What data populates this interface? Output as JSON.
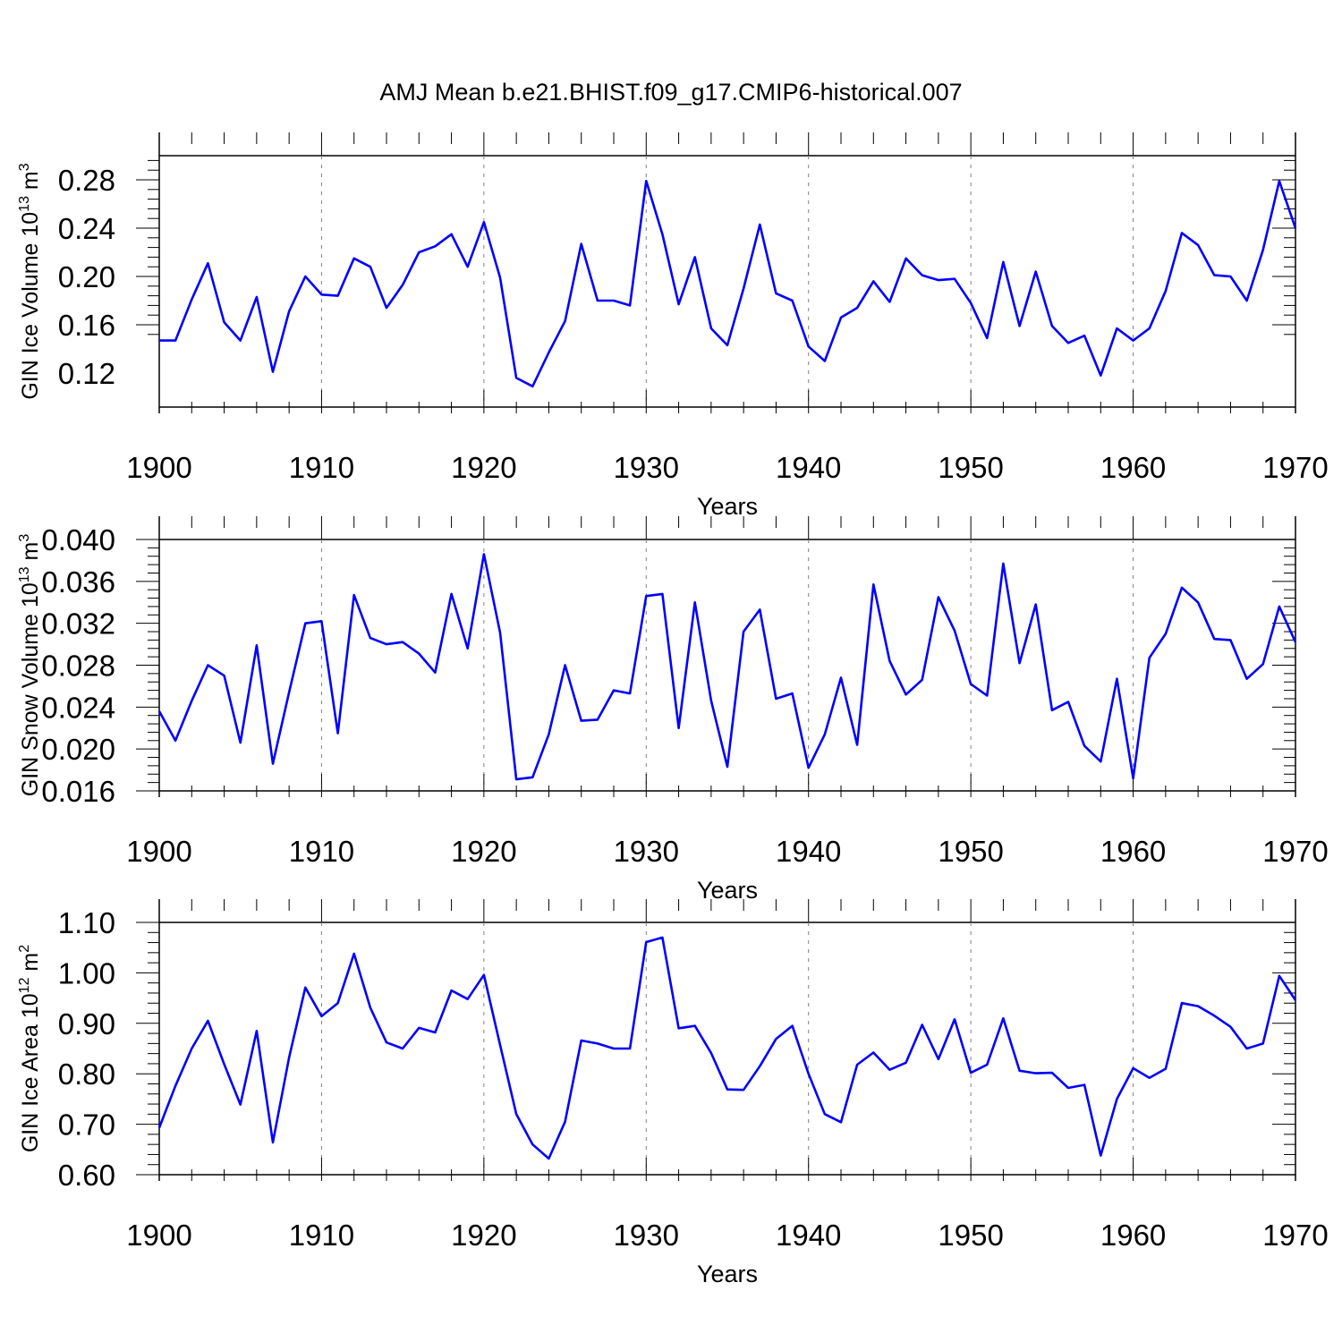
{
  "title": "AMJ Mean b.e21.BHIST.f09_g17.CMIP6-historical.007",
  "line_color": "#0000ff",
  "grid_color": "#808080",
  "chart_data": [
    {
      "type": "line",
      "ylabel": {
        "main": "GIN Ice Volume 10",
        "exp": "13",
        "unit": " m",
        "unit_exp": "3"
      },
      "xlabel": "Years",
      "xlim": [
        1900,
        1970
      ],
      "ylim": [
        0.09,
        0.3
      ],
      "xticks": [
        "1900",
        "1910",
        "1920",
        "1930",
        "1940",
        "1950",
        "1960",
        "1970"
      ],
      "yticks": [
        "0.12",
        "0.16",
        "0.20",
        "0.24",
        "0.28"
      ],
      "grid": "vertical-dashed",
      "x_start": 1900,
      "values": [
        0.147,
        0.147,
        0.181,
        0.211,
        0.162,
        0.147,
        0.183,
        0.121,
        0.171,
        0.2,
        0.185,
        0.184,
        0.215,
        0.208,
        0.174,
        0.193,
        0.22,
        0.225,
        0.235,
        0.208,
        0.245,
        0.199,
        0.116,
        0.109,
        0.137,
        0.163,
        0.227,
        0.18,
        0.18,
        0.176,
        0.279,
        0.235,
        0.177,
        0.216,
        0.157,
        0.143,
        0.19,
        0.243,
        0.186,
        0.18,
        0.142,
        0.13,
        0.166,
        0.174,
        0.196,
        0.179,
        0.215,
        0.201,
        0.197,
        0.198,
        0.178,
        0.149,
        0.212,
        0.159,
        0.204,
        0.159,
        0.145,
        0.151,
        0.118,
        0.157,
        0.147,
        0.157,
        0.188,
        0.236,
        0.226,
        0.201,
        0.2,
        0.18,
        0.222,
        0.279,
        0.24
      ]
    },
    {
      "type": "line",
      "ylabel": {
        "main": "GIN Snow Volume 10",
        "exp": "13",
        "unit": " m",
        "unit_exp": "3"
      },
      "xlabel": "Years",
      "xlim": [
        1900,
        1970
      ],
      "ylim": [
        0.016,
        0.04
      ],
      "xticks": [
        "1900",
        "1910",
        "1920",
        "1930",
        "1940",
        "1950",
        "1960",
        "1970"
      ],
      "yticks": [
        "0.016",
        "0.020",
        "0.024",
        "0.028",
        "0.032",
        "0.036",
        "0.040"
      ],
      "grid": "vertical-dashed",
      "x_start": 1900,
      "values": [
        0.0236,
        0.0208,
        0.0246,
        0.028,
        0.027,
        0.0206,
        0.0299,
        0.0186,
        0.0254,
        0.032,
        0.0322,
        0.0215,
        0.0347,
        0.0306,
        0.03,
        0.0302,
        0.0291,
        0.0273,
        0.0348,
        0.0296,
        0.0386,
        0.0311,
        0.0171,
        0.0173,
        0.0214,
        0.028,
        0.0227,
        0.0228,
        0.0256,
        0.0253,
        0.0346,
        0.0348,
        0.022,
        0.034,
        0.0246,
        0.0183,
        0.0312,
        0.0333,
        0.0248,
        0.0253,
        0.0182,
        0.0214,
        0.0268,
        0.0204,
        0.0357,
        0.0284,
        0.0252,
        0.0266,
        0.0345,
        0.0313,
        0.0262,
        0.0251,
        0.0377,
        0.0282,
        0.0338,
        0.0237,
        0.0245,
        0.0203,
        0.0188,
        0.0267,
        0.0172,
        0.0287,
        0.031,
        0.0354,
        0.034,
        0.0305,
        0.0304,
        0.0267,
        0.0281,
        0.0336,
        0.0302
      ]
    },
    {
      "type": "line",
      "ylabel": {
        "main": "GIN Ice Area 10",
        "exp": "12",
        "unit": " m",
        "unit_exp": "2"
      },
      "xlabel": "Years",
      "xlim": [
        1900,
        1970
      ],
      "ylim": [
        0.6,
        1.1
      ],
      "xticks": [
        "1900",
        "1910",
        "1920",
        "1930",
        "1940",
        "1950",
        "1960",
        "1970"
      ],
      "yticks": [
        "0.60",
        "0.70",
        "0.80",
        "0.90",
        "1.00",
        "1.10"
      ],
      "grid": "vertical-dashed",
      "x_start": 1900,
      "values": [
        0.693,
        0.776,
        0.85,
        0.905,
        0.819,
        0.739,
        0.885,
        0.664,
        0.832,
        0.971,
        0.914,
        0.94,
        1.038,
        0.931,
        0.862,
        0.85,
        0.891,
        0.882,
        0.965,
        0.948,
        0.996,
        0.857,
        0.72,
        0.66,
        0.632,
        0.705,
        0.866,
        0.86,
        0.85,
        0.85,
        1.061,
        1.07,
        0.89,
        0.895,
        0.841,
        0.769,
        0.768,
        0.815,
        0.869,
        0.895,
        0.8,
        0.72,
        0.704,
        0.818,
        0.842,
        0.808,
        0.822,
        0.897,
        0.829,
        0.908,
        0.802,
        0.818,
        0.91,
        0.806,
        0.801,
        0.802,
        0.772,
        0.778,
        0.638,
        0.75,
        0.811,
        0.792,
        0.81,
        0.94,
        0.934,
        0.915,
        0.893,
        0.85,
        0.86,
        0.994,
        0.946
      ]
    }
  ]
}
